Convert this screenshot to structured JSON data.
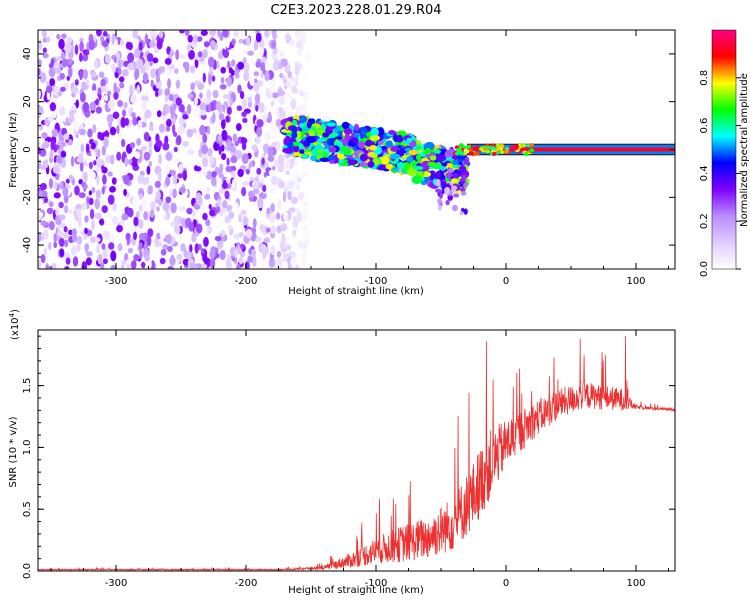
{
  "title": "C2E3.2023.228.01.29.R04",
  "chart_data": [
    {
      "type": "heatmap",
      "name": "spectrogram",
      "xlabel": "Height of straight line (km)",
      "ylabel": "Frequency (Hz)",
      "xlim": [
        -360,
        130
      ],
      "ylim": [
        -50,
        50
      ],
      "xticks": [
        -300,
        -200,
        -100,
        0,
        100
      ],
      "yticks": [
        -40,
        -20,
        0,
        20,
        40
      ],
      "colorbar": {
        "label": "Normalized spectral amplitude",
        "range": [
          0,
          1
        ],
        "ticks": [
          0.0,
          0.2,
          0.4,
          0.6,
          0.8
        ],
        "colormap": [
          "#ffffff",
          "#e0ccff",
          "#b98cff",
          "#7f00ff",
          "#0000ff",
          "#00ffff",
          "#00ff00",
          "#ffff00",
          "#ff0000",
          "#ff0080"
        ]
      },
      "regions": [
        {
          "desc": "noise",
          "x": [
            -360,
            -170
          ],
          "amplitude": 0.12
        },
        {
          "desc": "transition",
          "x": [
            -170,
            -30
          ],
          "amplitude": 0.35
        },
        {
          "desc": "carrier line",
          "x": [
            -30,
            130
          ],
          "frequency_hz": 0,
          "amplitude": 0.9
        }
      ]
    },
    {
      "type": "line",
      "name": "snr",
      "xlabel": "Height of straight line (km)",
      "ylabel": "SNR (10 * v/v)",
      "multiplier_label": "(x10",
      "multiplier_exp": "4",
      "multiplier_close": ")",
      "xlim": [
        -360,
        130
      ],
      "ylim": [
        0,
        1.95
      ],
      "xticks": [
        -300,
        -200,
        -100,
        0,
        100
      ],
      "yticks": [
        0.0,
        0.5,
        1.0,
        1.5
      ],
      "color": "#ee3030",
      "envelope": [
        {
          "x": -360,
          "base": 0.01,
          "spread": 0.008
        },
        {
          "x": -170,
          "base": 0.01,
          "spread": 0.008
        },
        {
          "x": -140,
          "base": 0.02,
          "spread": 0.03
        },
        {
          "x": -120,
          "base": 0.06,
          "spread": 0.12
        },
        {
          "x": -100,
          "base": 0.12,
          "spread": 0.22
        },
        {
          "x": -80,
          "base": 0.16,
          "spread": 0.3
        },
        {
          "x": -60,
          "base": 0.2,
          "spread": 0.35
        },
        {
          "x": -40,
          "base": 0.3,
          "spread": 0.45
        },
        {
          "x": -25,
          "base": 0.5,
          "spread": 0.55
        },
        {
          "x": -15,
          "base": 0.7,
          "spread": 0.6
        },
        {
          "x": 0,
          "base": 0.95,
          "spread": 0.4
        },
        {
          "x": 20,
          "base": 1.15,
          "spread": 0.3
        },
        {
          "x": 40,
          "base": 1.3,
          "spread": 0.25
        },
        {
          "x": 60,
          "base": 1.38,
          "spread": 0.22
        },
        {
          "x": 90,
          "base": 1.35,
          "spread": 0.18
        },
        {
          "x": 100,
          "base": 1.32,
          "spread": 0.03
        },
        {
          "x": 130,
          "base": 1.3,
          "spread": 0.02
        }
      ],
      "peaks": [
        {
          "x": -15,
          "y": 1.86
        },
        {
          "x": 57,
          "y": 1.88
        },
        {
          "x": 74,
          "y": 1.77
        },
        {
          "x": 92,
          "y": 1.9
        },
        {
          "x": -10,
          "y": 1.55
        },
        {
          "x": 40,
          "y": 1.55
        }
      ]
    }
  ]
}
